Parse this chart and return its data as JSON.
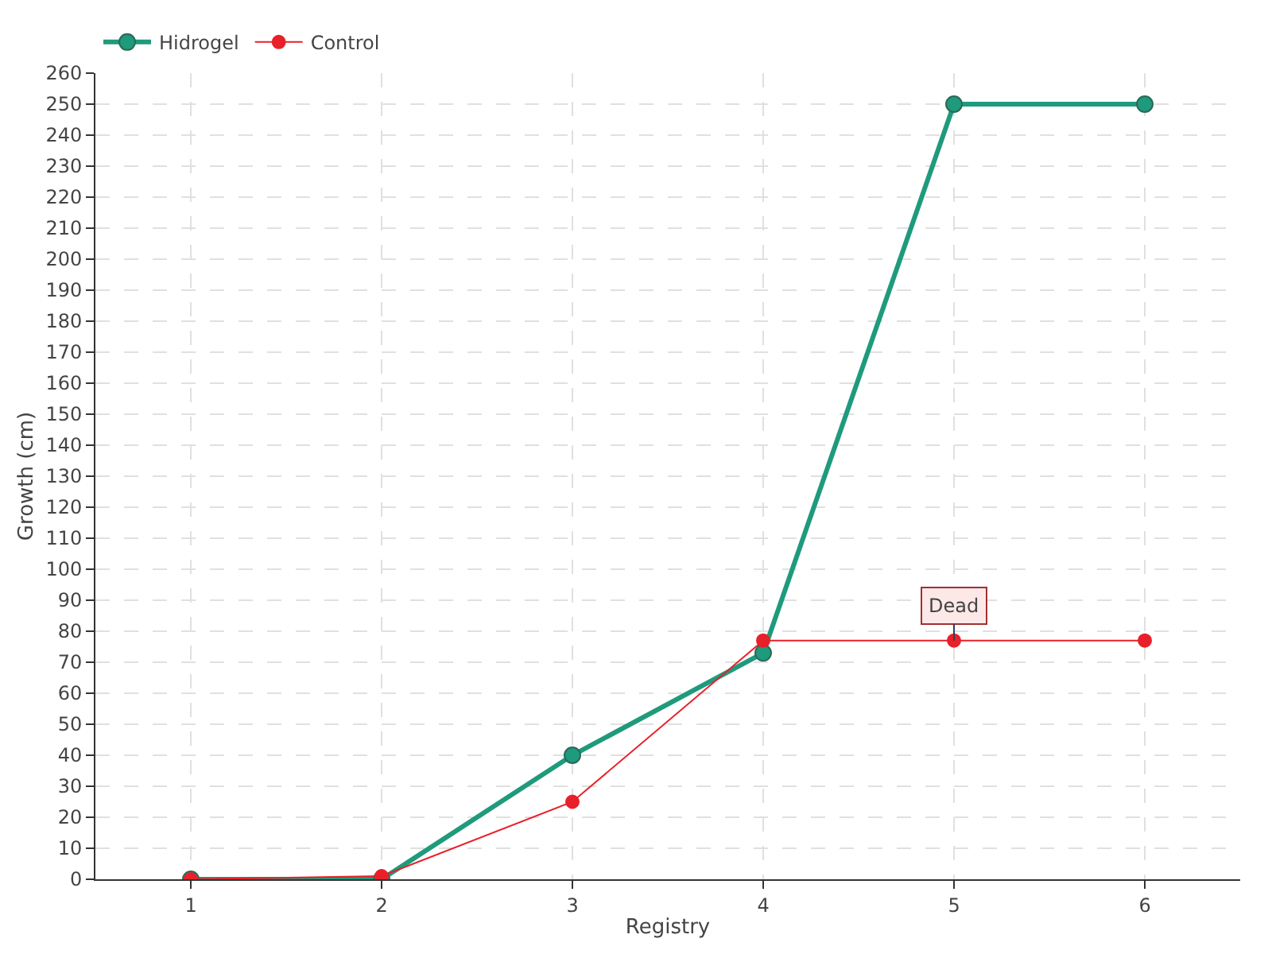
{
  "chart_data": {
    "type": "line",
    "xlabel": "Registry",
    "ylabel": "Growth (cm)",
    "x": [
      1,
      2,
      3,
      4,
      5,
      6
    ],
    "series": [
      {
        "name": "Hidrogel",
        "color": "#1f9a7c",
        "values": [
          0,
          0,
          40,
          73,
          250,
          250
        ]
      },
      {
        "name": "Control",
        "color": "#e8202a",
        "values": [
          0,
          1,
          25,
          77,
          77,
          77
        ]
      }
    ],
    "xlim": [
      0.5,
      6.5
    ],
    "xticks": [
      1,
      2,
      3,
      4,
      5,
      6
    ],
    "ylim": [
      0,
      260
    ],
    "yticks": [
      0,
      10,
      20,
      30,
      40,
      50,
      60,
      70,
      80,
      90,
      100,
      110,
      120,
      130,
      140,
      150,
      160,
      170,
      180,
      190,
      200,
      210,
      220,
      230,
      240,
      250,
      260
    ],
    "annotations": [
      {
        "text": "Dead",
        "x": 5,
        "y": 77
      }
    ],
    "grid": true,
    "legend": "top left",
    "marker": "circle",
    "line_style": "solid"
  }
}
